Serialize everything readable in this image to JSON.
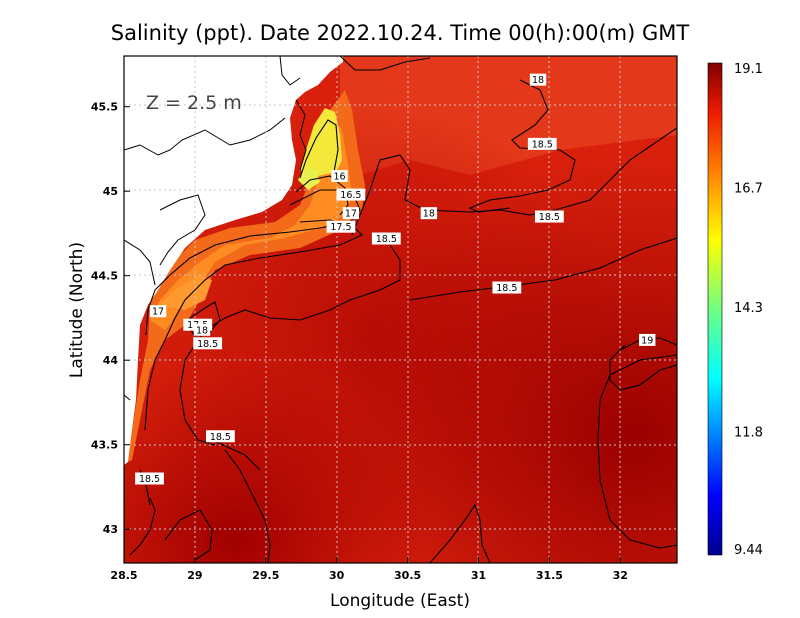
{
  "title": "Salinity (ppt). Date 2022.10.24. Time 00(h):00(m) GMT",
  "depth_label": "Z = 2.5 m",
  "xlabel": "Longitude (East)",
  "ylabel": "Latitude (North)",
  "x_ticks": [
    "28.5",
    "29",
    "29.5",
    "30",
    "30.5",
    "31",
    "31.5",
    "32"
  ],
  "y_ticks": [
    "45.5",
    "45",
    "44.5",
    "44",
    "43.5",
    "43"
  ],
  "colorbar": {
    "ticks": [
      "19.1",
      "16.7",
      "14.3",
      "11.8",
      "9.44"
    ],
    "min": 9.44,
    "max": 19.1
  },
  "map_extent": {
    "lon": [
      28.5,
      32.4
    ],
    "lat": [
      42.8,
      45.8
    ]
  },
  "contour_labels": [
    {
      "text": "18",
      "lon": 31.42,
      "lat": 45.66
    },
    {
      "text": "18.5",
      "lon": 31.45,
      "lat": 45.28
    },
    {
      "text": "16",
      "lon": 30.02,
      "lat": 45.09
    },
    {
      "text": "16.5",
      "lon": 30.1,
      "lat": 44.98
    },
    {
      "text": "17",
      "lon": 30.1,
      "lat": 44.87
    },
    {
      "text": "18",
      "lon": 30.65,
      "lat": 44.87
    },
    {
      "text": "18.5",
      "lon": 31.5,
      "lat": 44.85
    },
    {
      "text": "17.5",
      "lon": 30.03,
      "lat": 44.79
    },
    {
      "text": "18.5",
      "lon": 30.35,
      "lat": 44.72
    },
    {
      "text": "18.5",
      "lon": 31.2,
      "lat": 44.43
    },
    {
      "text": "17",
      "lon": 28.74,
      "lat": 44.29
    },
    {
      "text": "17.5",
      "lon": 29.02,
      "lat": 44.21
    },
    {
      "text": "18",
      "lon": 29.05,
      "lat": 44.18
    },
    {
      "text": "18.5",
      "lon": 29.09,
      "lat": 44.1
    },
    {
      "text": "19",
      "lon": 32.19,
      "lat": 44.12
    },
    {
      "text": "18.5",
      "lon": 29.18,
      "lat": 43.55
    },
    {
      "text": "18.5",
      "lon": 28.68,
      "lat": 43.3
    }
  ],
  "colors": {
    "land": "#ffffff",
    "deep_sea": "#a80000",
    "sea": "#e02a10",
    "plume": "#ff8a20",
    "fresh": "#f5f040"
  }
}
